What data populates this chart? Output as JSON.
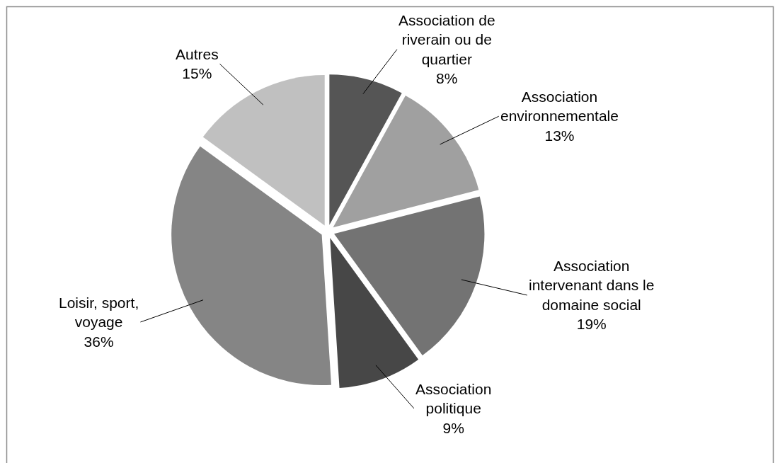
{
  "chart_data": {
    "type": "pie",
    "categories": [
      "Association de riverain ou de quartier",
      "Association environnementale",
      "Association intervenant dans le domaine social",
      "Association politique",
      "Loisir, sport, voyage",
      "Autres"
    ],
    "values": [
      8,
      13,
      19,
      9,
      36,
      15
    ],
    "value_labels": [
      "8%",
      "13%",
      "19%",
      "9%",
      "36%",
      "15%"
    ],
    "colors": [
      "#555555",
      "#a0a0a0",
      "#737373",
      "#474747",
      "#858585",
      "#c0c0c0"
    ]
  }
}
